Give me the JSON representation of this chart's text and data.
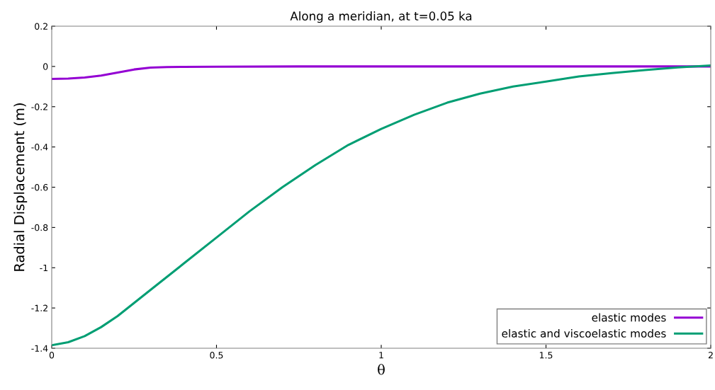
{
  "chart_data": {
    "type": "line",
    "title": "Along a meridian, at t=0.05 ka",
    "xlabel": "θ",
    "ylabel": "Radial Displacement (m)",
    "xlim": [
      0,
      2
    ],
    "xticks": [
      0,
      0.5,
      1,
      1.5,
      2
    ],
    "ylim": [
      -1.4,
      0.2
    ],
    "yticks": [
      -1.4,
      -1.2,
      -1,
      -0.8,
      -0.6,
      -0.4,
      -0.2,
      0,
      0.2
    ],
    "grid": false,
    "legend": "bottom right",
    "line_style": "solid",
    "marker": "none",
    "series": [
      {
        "name": "elastic modes",
        "color": "#9400d3",
        "x": [
          0,
          0.05,
          0.1,
          0.15,
          0.2,
          0.25,
          0.3,
          0.35,
          0.4,
          0.5,
          0.75,
          1,
          1.5,
          2
        ],
        "values": [
          -0.062,
          -0.06,
          -0.055,
          -0.045,
          -0.03,
          -0.015,
          -0.006,
          -0.003,
          -0.002,
          -0.001,
          0,
          0,
          0,
          0
        ]
      },
      {
        "name": "elastic and viscoelastic modes",
        "color": "#009e73",
        "x": [
          0,
          0.05,
          0.1,
          0.15,
          0.2,
          0.3,
          0.4,
          0.5,
          0.6,
          0.7,
          0.8,
          0.9,
          1.0,
          1.1,
          1.2,
          1.3,
          1.4,
          1.5,
          1.6,
          1.7,
          1.8,
          1.9,
          2.0
        ],
        "values": [
          -1.385,
          -1.37,
          -1.34,
          -1.295,
          -1.24,
          -1.11,
          -0.98,
          -0.85,
          -0.72,
          -0.6,
          -0.49,
          -0.39,
          -0.31,
          -0.24,
          -0.18,
          -0.135,
          -0.1,
          -0.075,
          -0.05,
          -0.033,
          -0.018,
          -0.005,
          0.005
        ]
      }
    ]
  }
}
